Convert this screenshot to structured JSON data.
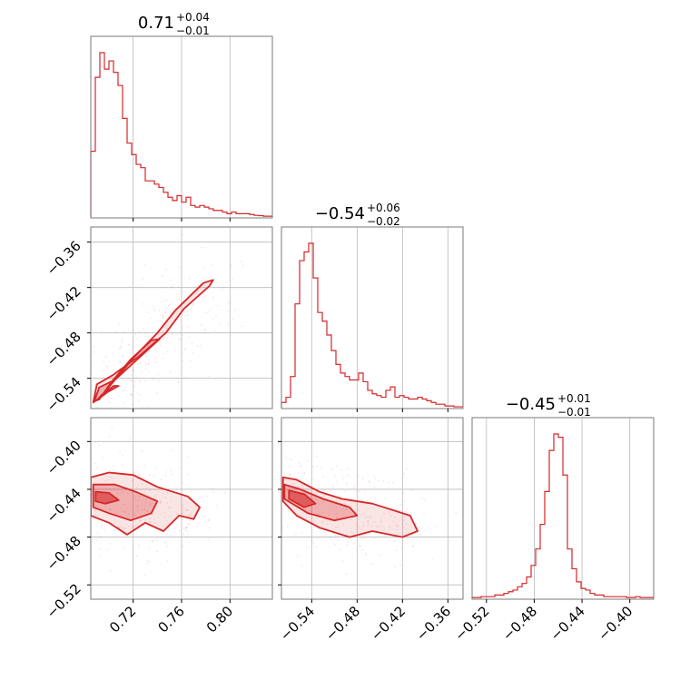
{
  "chart_data": {
    "type": "corner",
    "color": "#d62728",
    "grid": true,
    "parameters": [
      {
        "title": {
          "median": "0.71",
          "plus": "+0.04",
          "minus": "−0.01"
        },
        "range": [
          0.685,
          0.835
        ],
        "ticks": [
          0.72,
          0.76,
          0.8
        ],
        "tick_labels": [
          "0.72",
          "0.76",
          "0.80"
        ]
      },
      {
        "title": {
          "median": "−0.54",
          "plus": "+0.06",
          "minus": "−0.02"
        },
        "range": [
          -0.58,
          -0.34
        ],
        "ticks": [
          -0.54,
          -0.48,
          -0.42,
          -0.36
        ],
        "tick_labels": [
          "−0.54",
          "−0.48",
          "−0.42",
          "−0.36"
        ]
      },
      {
        "title": {
          "median": "−0.45",
          "plus": "+0.01",
          "minus": "−0.01"
        },
        "range": [
          -0.532,
          -0.38
        ],
        "ticks": [
          -0.52,
          -0.48,
          -0.44,
          -0.4
        ],
        "tick_labels": [
          "−0.52",
          "−0.48",
          "−0.44",
          "−0.40"
        ]
      }
    ],
    "histograms": [
      {
        "parameter": 0,
        "bin_start": 0.685,
        "bin_width": 0.00375,
        "counts": [
          0.4,
          0.85,
          1.0,
          0.9,
          0.95,
          0.88,
          0.8,
          0.6,
          0.45,
          0.38,
          0.32,
          0.3,
          0.22,
          0.22,
          0.2,
          0.18,
          0.15,
          0.12,
          0.1,
          0.13,
          0.09,
          0.12,
          0.07,
          0.06,
          0.07,
          0.06,
          0.05,
          0.04,
          0.04,
          0.03,
          0.02,
          0.03,
          0.02,
          0.02,
          0.02,
          0.015,
          0.01,
          0.008,
          0.005,
          0.005
        ]
      },
      {
        "parameter": 1,
        "bin_start": -0.58,
        "bin_width": 0.006,
        "counts": [
          0.03,
          0.06,
          0.18,
          0.6,
          0.85,
          0.9,
          0.95,
          0.75,
          0.55,
          0.5,
          0.42,
          0.33,
          0.25,
          0.2,
          0.18,
          0.16,
          0.16,
          0.2,
          0.15,
          0.1,
          0.08,
          0.07,
          0.06,
          0.1,
          0.12,
          0.06,
          0.07,
          0.06,
          0.05,
          0.05,
          0.06,
          0.05,
          0.04,
          0.03,
          0.02,
          0.02,
          0.01,
          0.01,
          0.005,
          0.005
        ]
      },
      {
        "parameter": 2,
        "bin_start": -0.532,
        "bin_width": 0.0038,
        "counts": [
          0.005,
          0.005,
          0.01,
          0.01,
          0.01,
          0.02,
          0.02,
          0.03,
          0.04,
          0.05,
          0.07,
          0.09,
          0.13,
          0.2,
          0.3,
          0.45,
          0.65,
          0.9,
          1.0,
          0.98,
          0.75,
          0.3,
          0.18,
          0.1,
          0.06,
          0.05,
          0.03,
          0.02,
          0.02,
          0.01,
          0.01,
          0.01,
          0.01,
          0.01,
          0.005,
          0.005,
          0.01,
          0.005,
          0.005,
          0.005
        ]
      }
    ],
    "contours_2d": [
      {
        "x_param": 0,
        "y_param": 1,
        "levels": [
          [
            [
              0.687,
              -0.572
            ],
            [
              0.69,
              -0.548
            ],
            [
              0.703,
              -0.536
            ],
            [
              0.724,
              -0.512
            ],
            [
              0.747,
              -0.48
            ],
            [
              0.762,
              -0.448
            ],
            [
              0.783,
              -0.418
            ],
            [
              0.786,
              -0.41
            ],
            [
              0.778,
              -0.414
            ],
            [
              0.755,
              -0.45
            ],
            [
              0.74,
              -0.48
            ],
            [
              0.722,
              -0.51
            ],
            [
              0.706,
              -0.54
            ],
            [
              0.693,
              -0.565
            ]
          ],
          [
            [
              0.688,
              -0.57
            ],
            [
              0.692,
              -0.552
            ],
            [
              0.705,
              -0.542
            ],
            [
              0.72,
              -0.52
            ],
            [
              0.735,
              -0.498
            ],
            [
              0.742,
              -0.488
            ],
            [
              0.735,
              -0.49
            ],
            [
              0.718,
              -0.515
            ],
            [
              0.702,
              -0.545
            ],
            [
              0.692,
              -0.568
            ]
          ],
          [
            [
              0.69,
              -0.569
            ],
            [
              0.699,
              -0.558
            ],
            [
              0.708,
              -0.55
            ],
            [
              0.704,
              -0.55
            ],
            [
              0.694,
              -0.562
            ]
          ]
        ]
      },
      {
        "x_param": 0,
        "y_param": 2,
        "levels": [
          [
            [
              0.685,
              -0.43
            ],
            [
              0.7,
              -0.426
            ],
            [
              0.72,
              -0.428
            ],
            [
              0.74,
              -0.438
            ],
            [
              0.765,
              -0.446
            ],
            [
              0.775,
              -0.455
            ],
            [
              0.77,
              -0.465
            ],
            [
              0.758,
              -0.462
            ],
            [
              0.745,
              -0.475
            ],
            [
              0.73,
              -0.468
            ],
            [
              0.715,
              -0.478
            ],
            [
              0.7,
              -0.468
            ],
            [
              0.685,
              -0.462
            ]
          ],
          [
            [
              0.687,
              -0.436
            ],
            [
              0.705,
              -0.436
            ],
            [
              0.722,
              -0.442
            ],
            [
              0.74,
              -0.45
            ],
            [
              0.735,
              -0.46
            ],
            [
              0.718,
              -0.466
            ],
            [
              0.7,
              -0.46
            ],
            [
              0.687,
              -0.455
            ]
          ],
          [
            [
              0.689,
              -0.442
            ],
            [
              0.7,
              -0.443
            ],
            [
              0.708,
              -0.449
            ],
            [
              0.697,
              -0.452
            ],
            [
              0.689,
              -0.45
            ]
          ]
        ]
      },
      {
        "x_param": 1,
        "y_param": 2,
        "levels": [
          [
            [
              -0.578,
              -0.43
            ],
            [
              -0.56,
              -0.432
            ],
            [
              -0.53,
              -0.442
            ],
            [
              -0.5,
              -0.448
            ],
            [
              -0.46,
              -0.452
            ],
            [
              -0.41,
              -0.462
            ],
            [
              -0.4,
              -0.475
            ],
            [
              -0.42,
              -0.48
            ],
            [
              -0.46,
              -0.475
            ],
            [
              -0.49,
              -0.48
            ],
            [
              -0.53,
              -0.472
            ],
            [
              -0.56,
              -0.462
            ],
            [
              -0.578,
              -0.45
            ]
          ],
          [
            [
              -0.576,
              -0.436
            ],
            [
              -0.555,
              -0.44
            ],
            [
              -0.525,
              -0.448
            ],
            [
              -0.49,
              -0.455
            ],
            [
              -0.48,
              -0.462
            ],
            [
              -0.51,
              -0.466
            ],
            [
              -0.545,
              -0.46
            ],
            [
              -0.576,
              -0.448
            ]
          ],
          [
            [
              -0.57,
              -0.441
            ],
            [
              -0.55,
              -0.444
            ],
            [
              -0.535,
              -0.452
            ],
            [
              -0.55,
              -0.455
            ],
            [
              -0.57,
              -0.448
            ]
          ]
        ]
      }
    ]
  }
}
